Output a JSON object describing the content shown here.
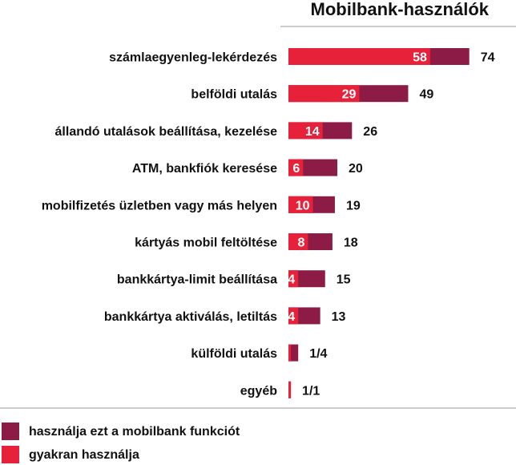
{
  "chart_data": {
    "type": "bar",
    "orientation": "horizontal",
    "title": "Mobilbank-használók",
    "categories": [
      "számlaegyenleg-lekérdezés",
      "belföldi utalás",
      "állandó utalások beállítása, kezelése",
      "ATM, bankfiók keresése",
      "mobilfizetés üzletben vagy más helyen",
      "kártyás mobil feltöltése",
      "bankkártya-limit beállítása",
      "bankkártya aktiválás, letiltás",
      "külföldi utalás",
      "egyéb"
    ],
    "series": [
      {
        "name": "használja ezt a mobilbank funkciót",
        "color": "#8c1c46",
        "values": [
          74,
          49,
          26,
          20,
          19,
          18,
          15,
          13,
          4,
          1
        ],
        "labels": [
          "74",
          "49",
          "26",
          "20",
          "19",
          "18",
          "15",
          "13",
          "1/4",
          "1/1"
        ]
      },
      {
        "name": "gyakran használja",
        "color": "#e8213a",
        "values": [
          58,
          29,
          14,
          6,
          10,
          8,
          4,
          4,
          1,
          1
        ],
        "labels": [
          "58",
          "29",
          "14",
          "6",
          "10",
          "8",
          "4",
          "4",
          "",
          ""
        ]
      }
    ],
    "xlim": [
      0,
      74
    ],
    "grid": false,
    "legend_position": "bottom-left"
  }
}
